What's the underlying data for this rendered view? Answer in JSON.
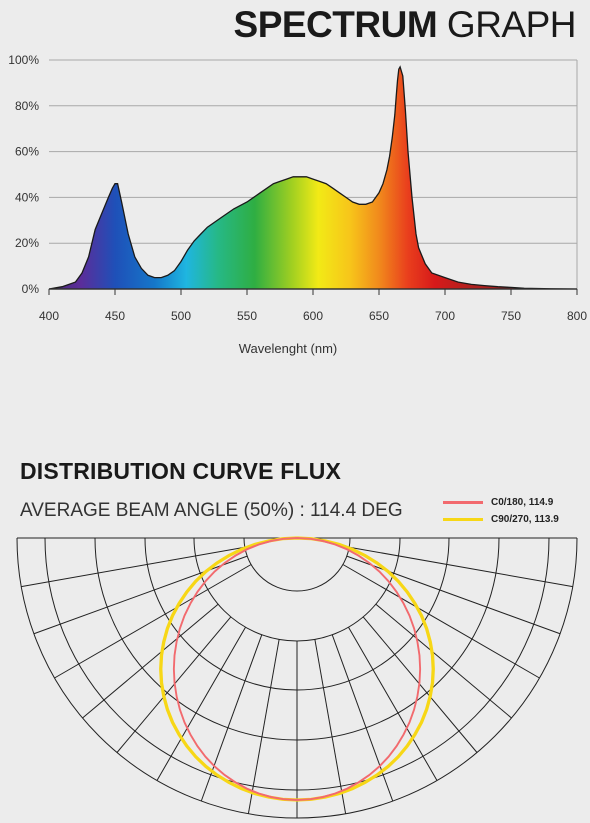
{
  "header": {
    "title_bold": "SPECTRUM",
    "title_light": "GRAPH"
  },
  "chart_data": [
    {
      "type": "area",
      "xlabel": "Wavelenght (nm)",
      "ylabel": "",
      "xlim": [
        400,
        800
      ],
      "ylim": [
        0,
        100
      ],
      "x_ticks": [
        "400",
        "450",
        "500",
        "550",
        "600",
        "650",
        "700",
        "750",
        "800"
      ],
      "y_ticks": [
        "0%",
        "20%",
        "40%",
        "60%",
        "80%",
        "100%"
      ],
      "grid": "horizontal",
      "fill": "visible spectrum gradient",
      "x": [
        400,
        410,
        420,
        425,
        430,
        435,
        440,
        445,
        448,
        450,
        452,
        455,
        460,
        465,
        470,
        475,
        480,
        485,
        490,
        495,
        500,
        505,
        510,
        515,
        520,
        530,
        540,
        550,
        560,
        570,
        575,
        580,
        585,
        590,
        595,
        600,
        605,
        610,
        615,
        620,
        625,
        630,
        635,
        640,
        645,
        650,
        653,
        656,
        658,
        660,
        662,
        663,
        664,
        665,
        666,
        668,
        670,
        672,
        675,
        678,
        680,
        685,
        690,
        700,
        710,
        720,
        730,
        740,
        750,
        760,
        780,
        800
      ],
      "y": [
        0,
        1,
        3,
        7,
        14,
        26,
        33,
        40,
        44,
        46,
        46,
        38,
        24,
        14,
        9,
        6,
        5,
        5,
        6,
        8,
        12,
        17,
        21,
        24,
        27,
        31,
        35,
        38,
        42,
        46,
        47,
        48,
        49,
        49,
        49,
        48,
        47,
        46,
        44,
        42,
        40,
        38,
        37,
        37,
        38,
        42,
        46,
        52,
        58,
        66,
        76,
        84,
        91,
        96,
        97,
        93,
        78,
        60,
        40,
        24,
        18,
        11,
        7,
        5,
        3,
        2,
        1.5,
        1,
        0.7,
        0.3,
        0.1,
        0
      ]
    },
    {
      "type": "polar",
      "title": "DISTRIBUTION CURVE FLUX",
      "subtitle": "AVERAGE BEAM ANGLE  (50%) : 114.4 DEG",
      "series": [
        {
          "name": "C0/180, 114.9",
          "color": "#f26a6e"
        },
        {
          "name": "C90/270, 113.9",
          "color": "#f7d716"
        }
      ]
    }
  ]
}
